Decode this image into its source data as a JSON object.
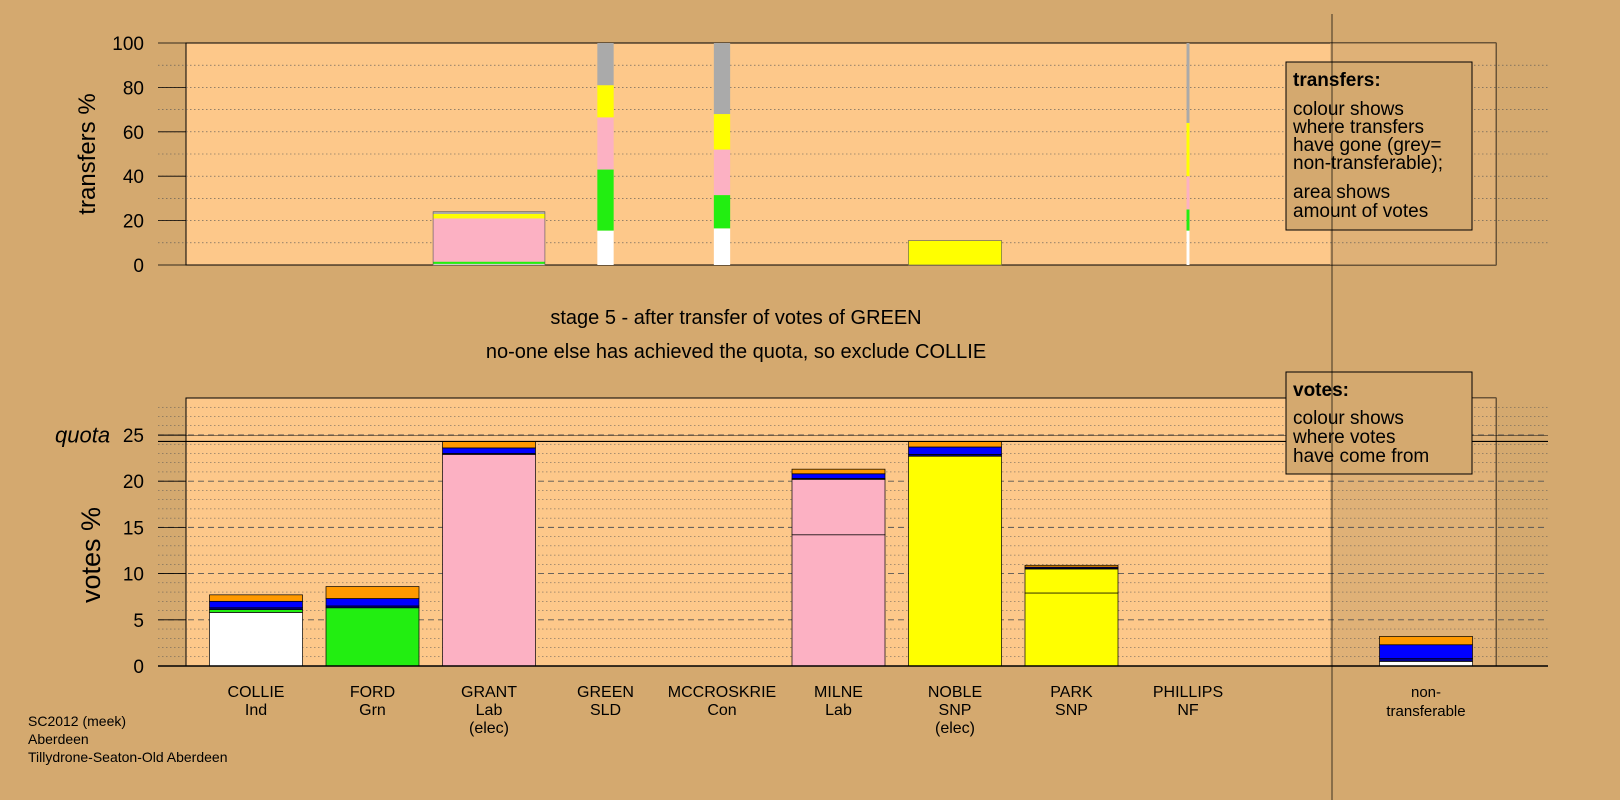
{
  "colors": {
    "background": "#d4a96f",
    "plot_bg": "#fdc88a",
    "shade": "#c79e68",
    "COLLIE": "#ffffff",
    "FORD": "#22ee11",
    "GRANT": "#fcb1c3",
    "MILNE": "#fcb1c3",
    "NOBLE": "#ffff00",
    "PARK": "#ffff00",
    "PHILLIPS": "#00008b",
    "MCCROSKRIE": "#0000ff",
    "GREEN": "#ff9900",
    "non_transferable": "#aaaaaa"
  },
  "top_panel": {
    "ylabel": "transfers %",
    "yticks": [
      "0",
      "20",
      "40",
      "60",
      "80",
      "100"
    ]
  },
  "legend_transfers": {
    "title": "transfers:",
    "line1": "colour shows",
    "line2": "where transfers",
    "line3": "have gone (grey=",
    "line4": "non-transferable);",
    "line5": "area shows",
    "line6": "amount of votes"
  },
  "legend_votes": {
    "title": "votes:",
    "line1": "colour shows",
    "line2": "where votes",
    "line3": "have come from"
  },
  "stage_text": "stage 5 - after transfer of votes of GREEN",
  "exclude_text": "no-one else has achieved the quota, so exclude COLLIE",
  "bottom_panel": {
    "ylabel": "votes %",
    "quota_label": "quota",
    "yticks": [
      "0",
      "5",
      "10",
      "15",
      "20",
      "25"
    ]
  },
  "candidates": [
    {
      "name": "COLLIE",
      "party": "Ind",
      "extra": ""
    },
    {
      "name": "FORD",
      "party": "Grn",
      "extra": ""
    },
    {
      "name": "GRANT",
      "party": "Lab",
      "extra": "(elec)"
    },
    {
      "name": "GREEN",
      "party": "SLD",
      "extra": ""
    },
    {
      "name": "MCCROSKRIE",
      "party": "Con",
      "extra": ""
    },
    {
      "name": "MILNE",
      "party": "Lab",
      "extra": ""
    },
    {
      "name": "NOBLE",
      "party": "SNP",
      "extra": "(elec)"
    },
    {
      "name": "PARK",
      "party": "SNP",
      "extra": ""
    },
    {
      "name": "PHILLIPS",
      "party": "NF",
      "extra": ""
    }
  ],
  "nontransferable_label": {
    "line1": "non-",
    "line2": "transferable"
  },
  "footer": {
    "line1": "SC2012 (meek)",
    "line2": "Aberdeen",
    "line3": "Tillydrone-Seaton-Old Aberdeen"
  },
  "chart_data": [
    {
      "type": "bar",
      "panel": "transfers",
      "ylabel": "transfers %",
      "ylim": [
        0,
        100
      ],
      "grid": true,
      "transfers": [
        {
          "candidate": "GRANT",
          "width_fraction": 0.96,
          "segments": [
            {
              "to": "COLLIE",
              "from": 0,
              "to_pct": 0.5
            },
            {
              "to": "FORD",
              "from": 0.5,
              "to_pct": 1.5
            },
            {
              "to": "MILNE",
              "from": 1.5,
              "to_pct": 21
            },
            {
              "to": "NOBLE",
              "from": 21,
              "to_pct": 22
            },
            {
              "to": "PARK",
              "from": 22,
              "to_pct": 23
            },
            {
              "to": "non_transferable",
              "from": 23,
              "to_pct": 24
            }
          ]
        },
        {
          "candidate": "GREEN",
          "width_fraction": 0.14,
          "segments": [
            {
              "to": "COLLIE",
              "from": 0,
              "to_pct": 15.5
            },
            {
              "to": "FORD",
              "from": 15.5,
              "to_pct": 43
            },
            {
              "to": "MILNE",
              "from": 43,
              "to_pct": 66.5
            },
            {
              "to": "PARK",
              "from": 66.5,
              "to_pct": 81
            },
            {
              "to": "non_transferable",
              "from": 81,
              "to_pct": 100
            }
          ]
        },
        {
          "candidate": "MCCROSKRIE",
          "width_fraction": 0.14,
          "segments": [
            {
              "to": "COLLIE",
              "from": 0,
              "to_pct": 16.5
            },
            {
              "to": "FORD",
              "from": 16.5,
              "to_pct": 31.5
            },
            {
              "to": "MILNE",
              "from": 31.5,
              "to_pct": 52
            },
            {
              "to": "PARK",
              "from": 52,
              "to_pct": 68
            },
            {
              "to": "non_transferable",
              "from": 68,
              "to_pct": 100
            }
          ]
        },
        {
          "candidate": "NOBLE",
          "width_fraction": 0.8,
          "segments": [
            {
              "to": "PARK",
              "from": 0,
              "to_pct": 11
            }
          ]
        },
        {
          "candidate": "PHILLIPS",
          "width_fraction": 0.025,
          "segments": [
            {
              "to": "COLLIE",
              "from": 0,
              "to_pct": 15.5
            },
            {
              "to": "FORD",
              "from": 15.5,
              "to_pct": 25
            },
            {
              "to": "MILNE",
              "from": 25,
              "to_pct": 40
            },
            {
              "to": "PARK",
              "from": 40,
              "to_pct": 64
            },
            {
              "to": "non_transferable",
              "from": 64,
              "to_pct": 100
            }
          ]
        }
      ]
    },
    {
      "type": "bar",
      "panel": "votes",
      "ylabel": "votes %",
      "ylim": [
        0,
        29
      ],
      "quota": 24.3,
      "grid": true,
      "categories": [
        "COLLIE",
        "FORD",
        "GRANT",
        "GREEN",
        "MCCROSKRIE",
        "MILNE",
        "NOBLE",
        "PARK",
        "PHILLIPS",
        "non-transferable"
      ],
      "stacks": [
        {
          "candidate": "COLLIE",
          "total": 7.7,
          "segments": [
            {
              "from": "COLLIE",
              "value": 5.8
            },
            {
              "from": "FORD",
              "value": 0.3
            },
            {
              "from": "PHILLIPS",
              "value": 0.2
            },
            {
              "from": "MCCROSKRIE",
              "value": 0.7
            },
            {
              "from": "GREEN",
              "value": 0.7
            }
          ]
        },
        {
          "candidate": "FORD",
          "total": 8.6,
          "segments": [
            {
              "from": "FORD",
              "value": 6.3
            },
            {
              "from": "PHILLIPS",
              "value": 0.2
            },
            {
              "from": "MCCROSKRIE",
              "value": 0.8
            },
            {
              "from": "GREEN",
              "value": 1.3
            }
          ]
        },
        {
          "candidate": "GRANT",
          "total": 24.3,
          "segments": [
            {
              "from": "GRANT",
              "value": 22.9
            },
            {
              "from": "PHILLIPS",
              "value": 0.1
            },
            {
              "from": "MCCROSKRIE",
              "value": 0.6
            },
            {
              "from": "GREEN",
              "value": 0.7
            }
          ]
        },
        {
          "candidate": "MILNE",
          "total": 21.3,
          "segments": [
            {
              "from": "MILNE",
              "value": 14.2
            },
            {
              "from": "GRANT",
              "value": 6.0
            },
            {
              "from": "PHILLIPS",
              "value": 0.1
            },
            {
              "from": "MCCROSKRIE",
              "value": 0.5
            },
            {
              "from": "GREEN",
              "value": 0.5
            }
          ]
        },
        {
          "candidate": "NOBLE",
          "total": 24.3,
          "segments": [
            {
              "from": "NOBLE",
              "value": 22.7
            },
            {
              "from": "PHILLIPS",
              "value": 0.2
            },
            {
              "from": "MCCROSKRIE",
              "value": 0.8
            },
            {
              "from": "GREEN",
              "value": 0.6
            }
          ]
        },
        {
          "candidate": "PARK",
          "total": 10.9,
          "segments": [
            {
              "from": "PARK",
              "value": 7.9
            },
            {
              "from": "NOBLE",
              "value": 2.6
            },
            {
              "from": "PHILLIPS",
              "value": 0.1
            },
            {
              "from": "MCCROSKRIE",
              "value": 0.1
            },
            {
              "from": "GREEN",
              "value": 0.2
            }
          ]
        },
        {
          "candidate": "non-transferable",
          "total": 3.2,
          "segments": [
            {
              "from": "COLLIE",
              "value": 0.5
            },
            {
              "from": "PHILLIPS",
              "value": 0.3
            },
            {
              "from": "MCCROSKRIE",
              "value": 1.5
            },
            {
              "from": "GREEN",
              "value": 0.9
            }
          ]
        }
      ]
    }
  ]
}
